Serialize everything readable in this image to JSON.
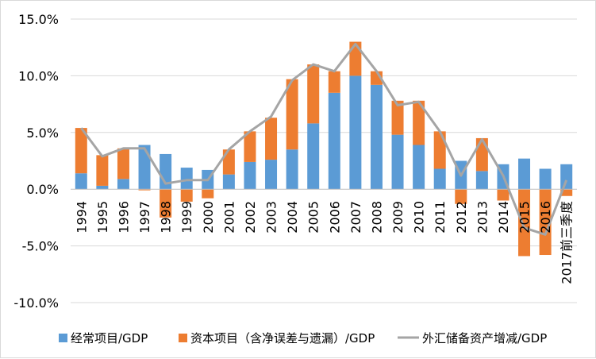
{
  "chart_data": {
    "type": "bar",
    "stacked": true,
    "title": "",
    "xlabel": "",
    "ylabel": "",
    "ylim": [
      -0.1,
      0.15
    ],
    "y_ticks": [
      "15.0%",
      "10.0%",
      "5.0%",
      "0.0%",
      "-5.0%",
      "-10.0%"
    ],
    "y_tick_values": [
      0.15,
      0.1,
      0.05,
      0.0,
      -0.05,
      -0.1
    ],
    "grid": "horizontal",
    "legend_position": "bottom",
    "categories": [
      "1994",
      "1995",
      "1996",
      "1997",
      "1998",
      "1999",
      "2000",
      "2001",
      "2002",
      "2003",
      "2004",
      "2005",
      "2006",
      "2007",
      "2008",
      "2009",
      "2010",
      "2011",
      "2012",
      "2013",
      "2014",
      "2015",
      "2016",
      "2017前三季度"
    ],
    "series": [
      {
        "name": "经常项目/GDP",
        "kind": "bar",
        "color": "#5B9BD5",
        "values": [
          0.014,
          0.003,
          0.009,
          0.039,
          0.031,
          0.019,
          0.017,
          0.013,
          0.024,
          0.026,
          0.035,
          0.058,
          0.085,
          0.1,
          0.092,
          0.048,
          0.039,
          0.018,
          0.025,
          0.016,
          0.022,
          0.027,
          0.018,
          0.022
        ]
      },
      {
        "name": "资本项目（含净误差与遗漏）/GDP",
        "kind": "bar",
        "color": "#ED7D31",
        "values": [
          0.04,
          0.027,
          0.027,
          -0.001,
          -0.025,
          -0.011,
          -0.008,
          0.022,
          0.027,
          0.037,
          0.062,
          0.052,
          0.019,
          0.03,
          0.012,
          0.03,
          0.039,
          0.033,
          -0.013,
          0.029,
          -0.01,
          -0.059,
          -0.058,
          -0.006
        ]
      },
      {
        "name": "外汇储备资产增减/GDP",
        "kind": "line",
        "color": "#A5A5A5",
        "values": [
          0.054,
          0.029,
          0.036,
          0.036,
          0.005,
          0.008,
          0.008,
          0.035,
          0.051,
          0.064,
          0.096,
          0.11,
          0.104,
          0.128,
          0.104,
          0.074,
          0.077,
          0.051,
          0.012,
          0.044,
          0.012,
          -0.034,
          -0.04,
          0.008
        ]
      }
    ]
  }
}
